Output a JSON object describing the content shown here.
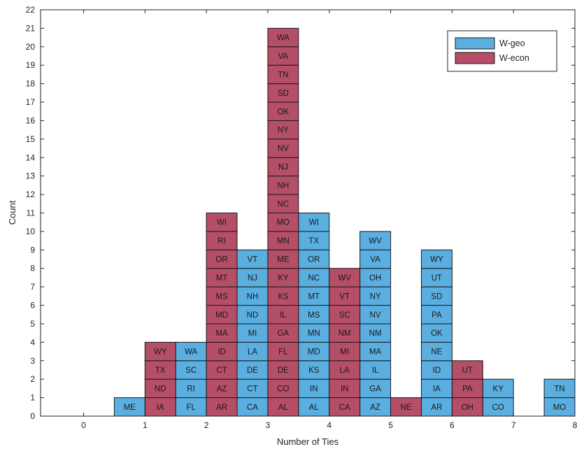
{
  "chart_data": {
    "type": "bar",
    "xlabel": "Number of Ties",
    "ylabel": "Count",
    "xlim": [
      -0.7,
      8
    ],
    "ylim": [
      0,
      22
    ],
    "x_ticks": [
      "0",
      "1",
      "2",
      "3",
      "4",
      "5",
      "6",
      "7",
      "8"
    ],
    "y_ticks": [
      "0",
      "1",
      "2",
      "3",
      "4",
      "5",
      "6",
      "7",
      "8",
      "9",
      "10",
      "11",
      "12",
      "13",
      "14",
      "15",
      "16",
      "17",
      "18",
      "19",
      "20",
      "21",
      "22"
    ],
    "legend": {
      "placement": "top-right"
    },
    "bar_offset": 0.25,
    "bar_width": 0.5,
    "series": [
      {
        "name": "W-geo",
        "color": "#5aaee0",
        "bars": [
          {
            "x": 1,
            "labels": [
              "ME"
            ]
          },
          {
            "x": 2,
            "labels": [
              "FL",
              "RI",
              "SC",
              "WA"
            ]
          },
          {
            "x": 3,
            "labels": [
              "CA",
              "CT",
              "DE",
              "LA",
              "MI",
              "ND",
              "NH",
              "NJ",
              "VT"
            ]
          },
          {
            "x": 4,
            "labels": [
              "AL",
              "IN",
              "KS",
              "MD",
              "MN",
              "MS",
              "MT",
              "NC",
              "OR",
              "TX",
              "WI"
            ]
          },
          {
            "x": 5,
            "labels": [
              "AZ",
              "GA",
              "IL",
              "MA",
              "NM",
              "NV",
              "NY",
              "OH",
              "VA",
              "WV"
            ]
          },
          {
            "x": 6,
            "labels": [
              "AR",
              "IA",
              "ID",
              "NE",
              "OK",
              "PA",
              "SD",
              "UT",
              "WY"
            ]
          },
          {
            "x": 7,
            "labels": [
              "CO",
              "KY"
            ]
          },
          {
            "x": 8,
            "labels": [
              "MO",
              "TN"
            ]
          }
        ]
      },
      {
        "name": "W-econ",
        "color": "#b54e67",
        "bars": [
          {
            "x": 1,
            "labels": [
              "IA",
              "ND",
              "TX",
              "WY"
            ]
          },
          {
            "x": 2,
            "labels": [
              "AR",
              "AZ",
              "CT",
              "ID",
              "MA",
              "MD",
              "MS",
              "MT",
              "OR",
              "RI",
              "WI"
            ]
          },
          {
            "x": 3,
            "labels": [
              "AL",
              "CO",
              "DE",
              "FL",
              "GA",
              "IL",
              "KS",
              "KY",
              "ME",
              "MN",
              "MO",
              "NC",
              "NH",
              "NJ",
              "NV",
              "NY",
              "OK",
              "SD",
              "TN",
              "VA",
              "WA"
            ]
          },
          {
            "x": 4,
            "labels": [
              "CA",
              "IN",
              "LA",
              "MI",
              "NM",
              "SC",
              "VT",
              "WV"
            ]
          },
          {
            "x": 5,
            "labels": [
              "NE"
            ]
          },
          {
            "x": 6,
            "labels": [
              "OH",
              "PA",
              "UT"
            ]
          }
        ]
      }
    ]
  }
}
